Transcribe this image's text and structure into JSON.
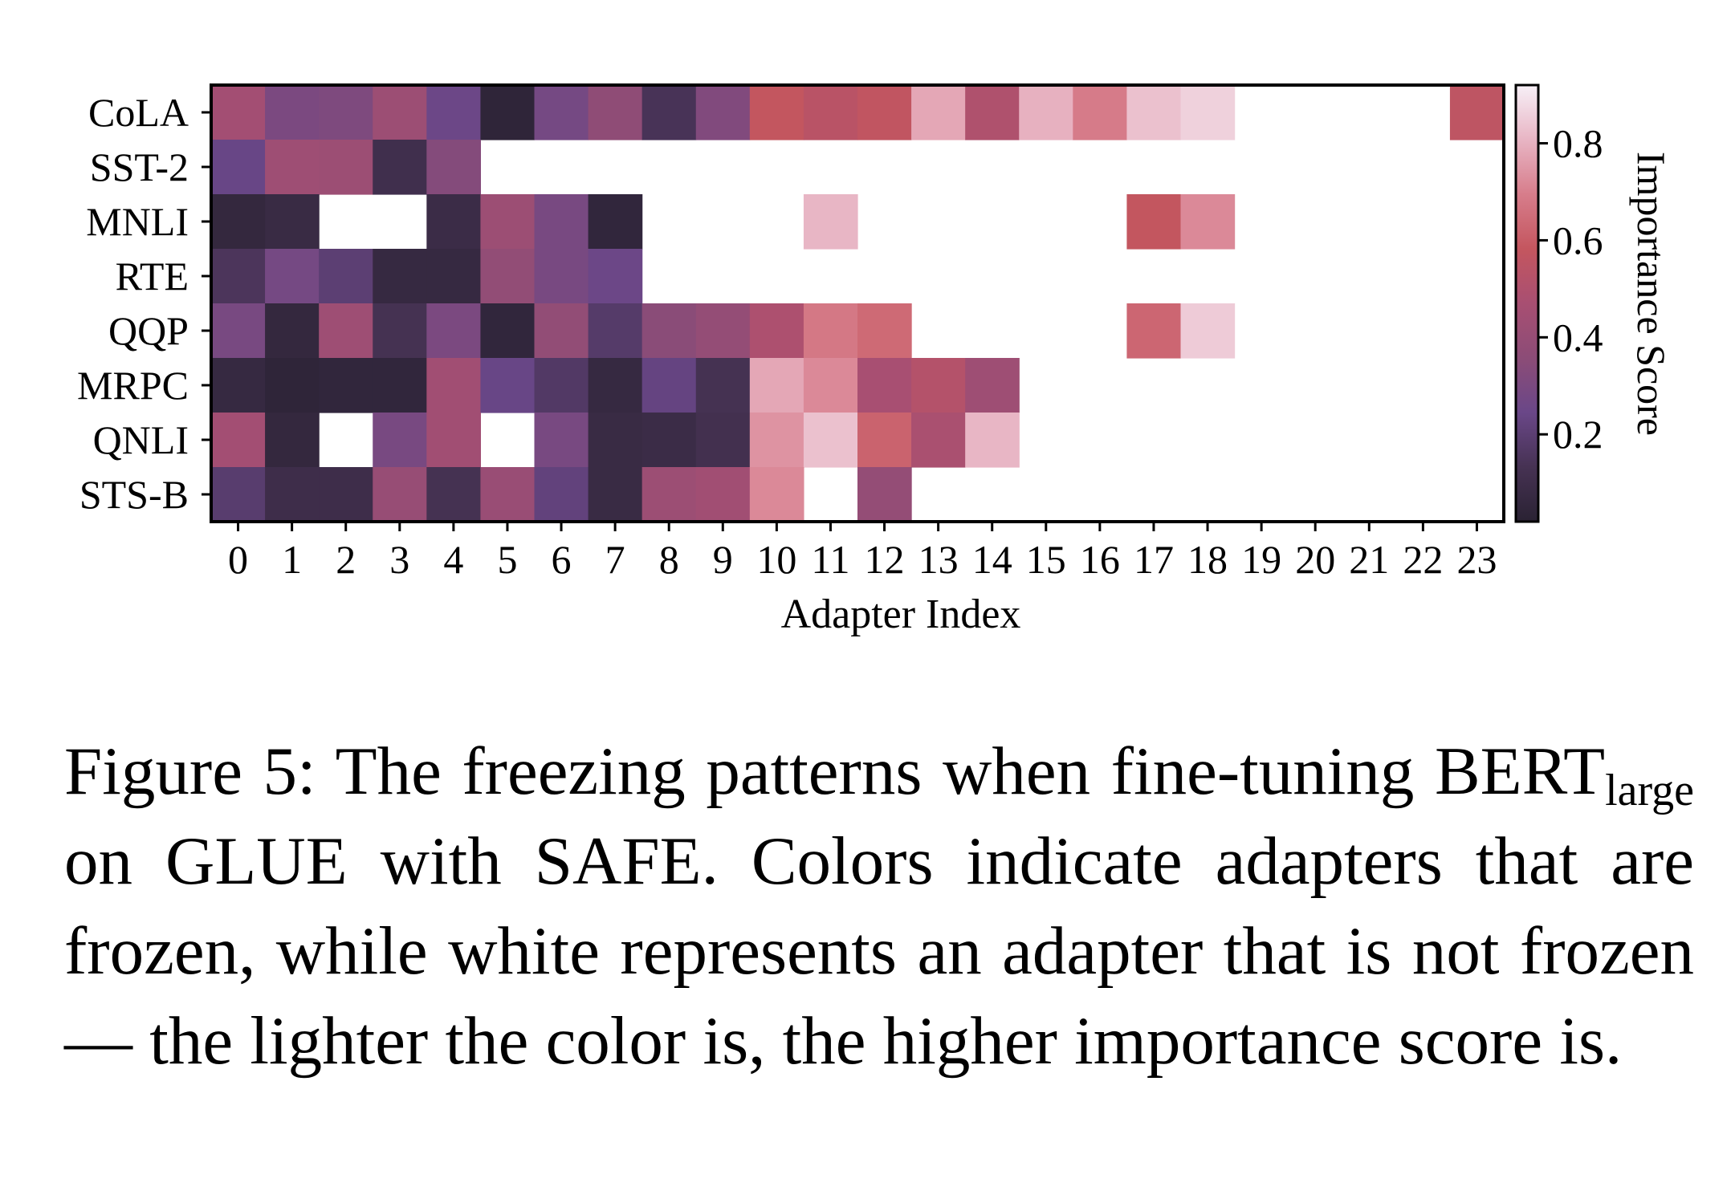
{
  "chart_data": {
    "type": "heatmap",
    "xlabel": "Adapter Index",
    "colorbar_label": "Importance Score",
    "colorbar_ticks": [
      "0.2",
      "0.4",
      "0.6",
      "0.8"
    ],
    "colorbar_range": [
      0.02,
      0.92
    ],
    "colormap_stops": [
      "#2a2233",
      "#463253",
      "#6a4788",
      "#8c4c77",
      "#a84f72",
      "#c4565f",
      "#d77d8b",
      "#e8b5c4",
      "#f7f0f7"
    ],
    "columns": [
      "0",
      "1",
      "2",
      "3",
      "4",
      "5",
      "6",
      "7",
      "8",
      "9",
      "10",
      "11",
      "12",
      "13",
      "14",
      "15",
      "16",
      "17",
      "18",
      "19",
      "20",
      "21",
      "22",
      "23"
    ],
    "rows": [
      "CoLA",
      "SST-2",
      "MNLI",
      "RTE",
      "QQP",
      "MRPC",
      "QNLI",
      "STS-B"
    ],
    "values": [
      [
        0.45,
        0.3,
        0.31,
        0.42,
        0.25,
        0.04,
        0.28,
        0.37,
        0.14,
        0.32,
        0.58,
        0.54,
        0.57,
        0.78,
        0.5,
        0.8,
        0.69,
        0.83,
        0.86,
        null,
        null,
        null,
        null,
        0.56
      ],
      [
        0.24,
        0.43,
        0.42,
        0.11,
        0.33,
        null,
        null,
        null,
        null,
        null,
        null,
        null,
        null,
        null,
        null,
        null,
        null,
        null,
        null,
        null,
        null,
        null,
        null,
        null
      ],
      [
        0.06,
        0.08,
        null,
        null,
        0.09,
        0.42,
        0.29,
        0.05,
        null,
        null,
        null,
        0.81,
        null,
        null,
        null,
        null,
        null,
        0.58,
        0.72,
        null,
        null,
        null,
        null,
        null
      ],
      [
        0.15,
        0.28,
        0.2,
        0.07,
        0.07,
        0.38,
        0.29,
        0.25,
        null,
        null,
        null,
        null,
        null,
        null,
        null,
        null,
        null,
        null,
        null,
        null,
        null,
        null,
        null,
        null
      ],
      [
        0.29,
        0.06,
        0.43,
        0.13,
        0.3,
        0.05,
        0.38,
        0.18,
        0.35,
        0.39,
        0.49,
        0.68,
        0.64,
        null,
        null,
        null,
        null,
        0.63,
        0.85,
        null,
        null,
        null,
        null,
        null
      ],
      [
        0.07,
        0.04,
        0.05,
        0.05,
        0.44,
        0.24,
        0.17,
        0.07,
        0.23,
        0.13,
        0.78,
        0.72,
        0.47,
        0.52,
        0.43,
        null,
        null,
        null,
        null,
        null,
        null,
        null,
        null,
        null
      ],
      [
        0.45,
        0.06,
        null,
        0.29,
        0.44,
        null,
        0.29,
        0.08,
        0.09,
        0.12,
        0.74,
        0.83,
        0.62,
        0.48,
        0.81,
        null,
        null,
        null,
        null,
        null,
        null,
        null,
        null,
        null
      ],
      [
        0.19,
        0.1,
        0.1,
        0.4,
        0.13,
        0.41,
        0.22,
        0.08,
        0.42,
        0.44,
        0.72,
        null,
        0.39,
        null,
        null,
        null,
        null,
        null,
        null,
        null,
        null,
        null,
        null,
        null
      ]
    ]
  },
  "caption": {
    "line1": "Figure 5:  The freezing patterns when fine-tuning",
    "line2a": "BERT",
    "line2sub": "large",
    "line2b": " on GLUE with SAFE. Colors indicate adapters that are frozen, while white represents an adapter that is not frozen — the lighter the color is, the higher importance score is."
  }
}
